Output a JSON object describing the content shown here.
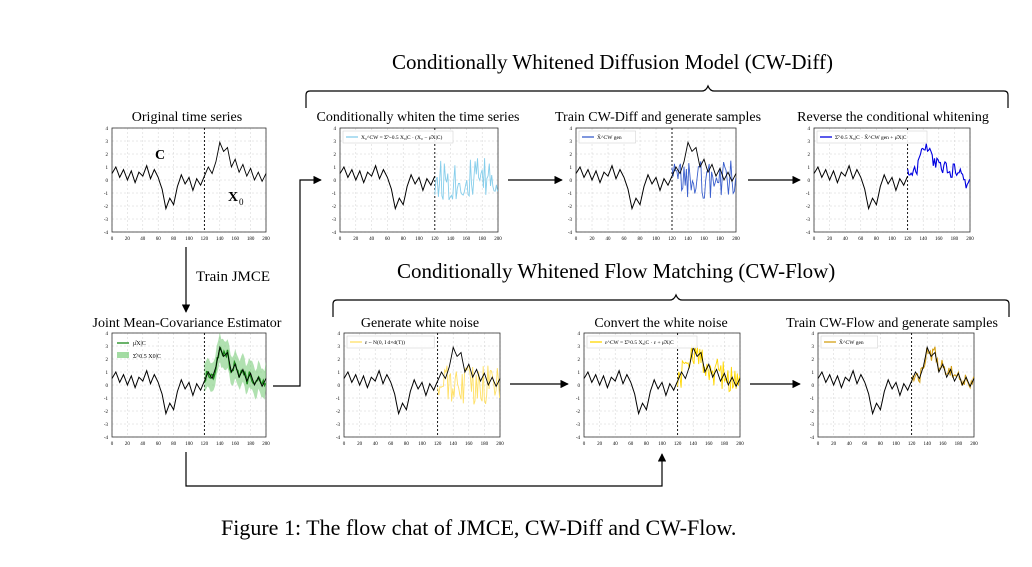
{
  "sections": {
    "diff_title": "Conditionally Whitened Diffusion Model (CW-Diff)",
    "flow_title": "Conditionally Whitened Flow Matching (CW-Flow)"
  },
  "panels": {
    "original": {
      "title": "Original time series",
      "label_c": "C",
      "label_x0": "X",
      "label_x0_sub": "0"
    },
    "jmce": {
      "title": "Joint Mean-Covariance Estimator",
      "legend": [
        "μ̂X|C",
        "Σ̂^0.5 X0|C"
      ]
    },
    "diff1": {
      "title": "Conditionally whiten the time series",
      "legend": "X₀^CW = Σ̂^-0.5 X₀|C · (X₀ − μ̂X|C)"
    },
    "diff2": {
      "title": "Train CW-Diff and generate samples",
      "legend": "X̂^CW gen"
    },
    "diff3": {
      "title": "Reverse the conditional whitening",
      "legend": "Σ̂^0.5 X₀|C · X̂^CW gen + μ̂X|C"
    },
    "flow1": {
      "title": "Generate white noise",
      "legend": "ε ~ N(0, I d×d(T))"
    },
    "flow2": {
      "title": "Convert the white noise",
      "legend": "ε^CW = Σ̂^0.5 X₀|C · ε + μ̂X|C"
    },
    "flow3": {
      "title": "Train CW-Flow and generate samples",
      "legend": "X̂^CW gen"
    }
  },
  "arrow_labels": {
    "train_jmce": "Train JMCE"
  },
  "caption": "Figure 1: The flow chat of JMCE, CW-Diff and CW-Flow.",
  "axes": {
    "x_ticks": [
      "0",
      "20",
      "40",
      "60",
      "80",
      "100",
      "120",
      "140",
      "160",
      "180",
      "200"
    ],
    "y_ticks": [
      "4",
      "3",
      "2",
      "1",
      "0",
      "-1",
      "-2",
      "-3",
      "-4"
    ]
  },
  "colors": {
    "base": "#000000",
    "whiten": "#87ceeb",
    "diff_gen": "#3a5fcd",
    "reverse": "#0000e0",
    "jmce_mean": "#1a8a1a",
    "jmce_band": "#7ccd7c",
    "noise": "#ffe066",
    "converted": "#ffd700",
    "flow_gen": "#d4a017"
  },
  "chart_data": {
    "type": "line",
    "x_range": [
      0,
      200
    ],
    "y_range": [
      -4,
      4
    ],
    "split_x": 120,
    "history": [
      {
        "x": 0,
        "y": 0.5
      },
      {
        "x": 5,
        "y": 1.0
      },
      {
        "x": 10,
        "y": 0.2
      },
      {
        "x": 15,
        "y": 0.8
      },
      {
        "x": 20,
        "y": 0.0
      },
      {
        "x": 25,
        "y": 0.7
      },
      {
        "x": 30,
        "y": -0.2
      },
      {
        "x": 35,
        "y": 0.6
      },
      {
        "x": 40,
        "y": 0.3
      },
      {
        "x": 45,
        "y": 1.1
      },
      {
        "x": 50,
        "y": 0.1
      },
      {
        "x": 55,
        "y": 0.8
      },
      {
        "x": 60,
        "y": 0.2
      },
      {
        "x": 65,
        "y": -0.7
      },
      {
        "x": 70,
        "y": -2.2
      },
      {
        "x": 75,
        "y": -1.4
      },
      {
        "x": 80,
        "y": -1.9
      },
      {
        "x": 85,
        "y": -0.5
      },
      {
        "x": 90,
        "y": 0.4
      },
      {
        "x": 95,
        "y": -0.3
      },
      {
        "x": 100,
        "y": 0.2
      },
      {
        "x": 105,
        "y": -0.8
      },
      {
        "x": 110,
        "y": 0.1
      },
      {
        "x": 115,
        "y": -0.4
      },
      {
        "x": 120,
        "y": 0.3
      }
    ],
    "future_truth": [
      {
        "x": 120,
        "y": 0.3
      },
      {
        "x": 125,
        "y": 1.0
      },
      {
        "x": 130,
        "y": 0.5
      },
      {
        "x": 135,
        "y": 1.4
      },
      {
        "x": 140,
        "y": 2.9
      },
      {
        "x": 145,
        "y": 2.2
      },
      {
        "x": 150,
        "y": 2.5
      },
      {
        "x": 155,
        "y": 1.0
      },
      {
        "x": 160,
        "y": 1.6
      },
      {
        "x": 165,
        "y": 0.6
      },
      {
        "x": 170,
        "y": 1.2
      },
      {
        "x": 175,
        "y": 0.3
      },
      {
        "x": 180,
        "y": 0.9
      },
      {
        "x": 185,
        "y": 0.0
      },
      {
        "x": 190,
        "y": 0.6
      },
      {
        "x": 195,
        "y": -0.1
      },
      {
        "x": 200,
        "y": 0.5
      }
    ]
  }
}
